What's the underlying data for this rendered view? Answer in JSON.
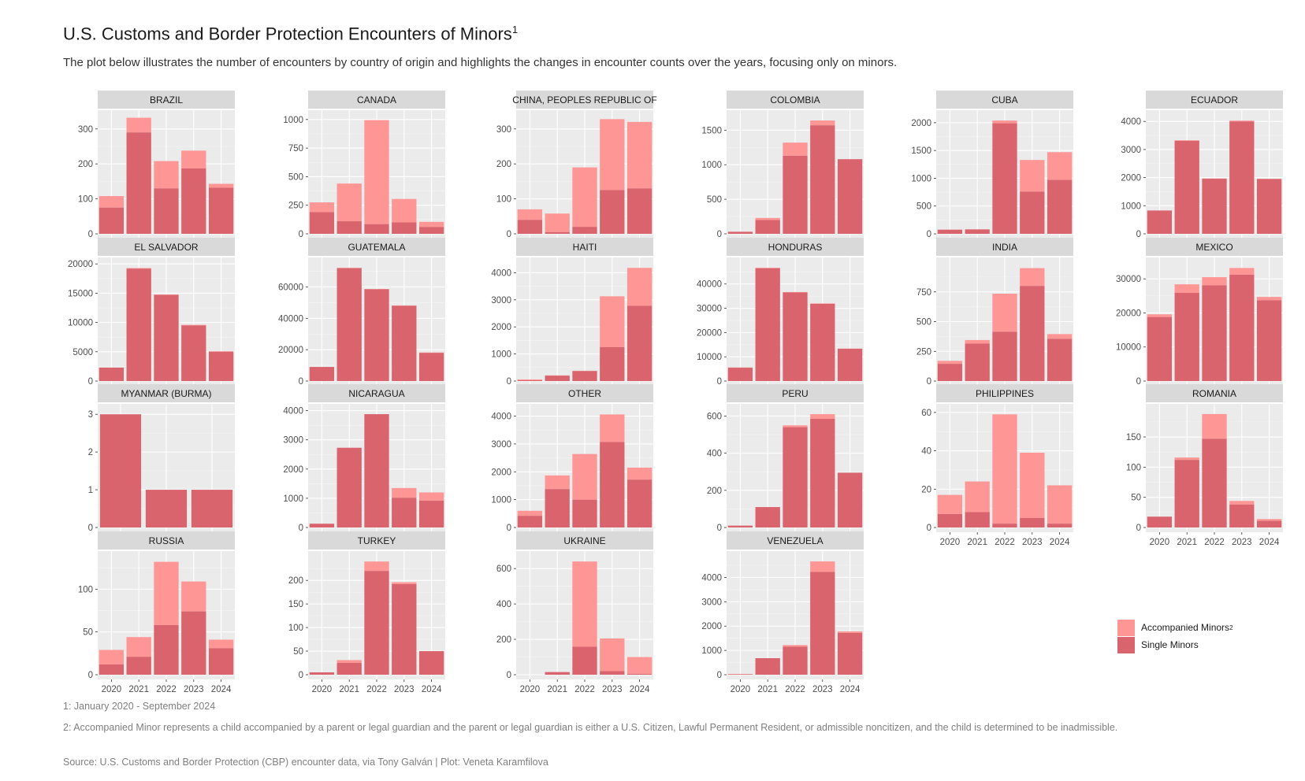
{
  "title": "U.S. Customs and Border Protection Encounters of Minors",
  "title_superscript": "1",
  "subtitle": "The plot below illustrates the number of encounters by country of origin and highlights the changes in encounter counts over the years, focusing only on minors.",
  "captions": {
    "note1": "1: January 2020 - September 2024",
    "note2": "2: Accompanied Minor represents a child accompanied by a parent or legal guardian and the parent or legal guardian is either a U.S. Citizen, Lawful Permanent Resident, or admissible noncitizen, and the child is determined to be inadmissible.",
    "source": "Source: U.S. Customs and Border Protection (CBP) encounter data, via Tony Galván | Plot: Veneta Karamfilova"
  },
  "legend": {
    "items": [
      {
        "label": "Accompanied Minors",
        "sup": "2",
        "color": "#ff9696"
      },
      {
        "label": "Single Minors",
        "sup": "",
        "color": "#d9646e"
      }
    ]
  },
  "colors": {
    "panel_bg": "#ebebeb",
    "strip_bg": "#d9d9d9",
    "grid_major": "#ffffff",
    "accompanied": "#ff9696",
    "single": "#d9646e",
    "axis_text": "#4d4d4d"
  },
  "chart_data": {
    "type": "bar",
    "stacked": true,
    "facet": "country",
    "series_names": [
      "Accompanied Minors",
      "Single Minors"
    ],
    "panels": [
      {
        "country": "BRAZIL",
        "years": [
          "2020",
          "2021",
          "2022",
          "2023",
          "2024"
        ],
        "single": [
          75,
          290,
          130,
          187,
          132
        ],
        "total": [
          108,
          332,
          208,
          238,
          143
        ],
        "ymax": 340,
        "ticks": [
          0,
          100,
          200,
          300
        ]
      },
      {
        "country": "CANADA",
        "years": [
          "2020",
          "2021",
          "2022",
          "2023",
          "2024"
        ],
        "single": [
          190,
          110,
          85,
          100,
          60
        ],
        "total": [
          275,
          440,
          995,
          305,
          105
        ],
        "ymax": 1040,
        "ticks": [
          0,
          250,
          500,
          750,
          1000
        ]
      },
      {
        "country": "CHINA, PEOPLES REPUBLIC OF",
        "years": [
          "2020",
          "2021",
          "2022",
          "2023",
          "2024"
        ],
        "single": [
          40,
          5,
          20,
          125,
          130
        ],
        "total": [
          70,
          58,
          190,
          328,
          320
        ],
        "ymax": 340,
        "ticks": [
          0,
          100,
          200,
          300
        ]
      },
      {
        "country": "COLOMBIA",
        "years": [
          "2020",
          "2021",
          "2022",
          "2023",
          "2024"
        ],
        "single": [
          30,
          200,
          1130,
          1570,
          1080
        ],
        "total": [
          30,
          230,
          1320,
          1640,
          1080
        ],
        "ymax": 1720,
        "ticks": [
          0,
          500,
          1000,
          1500
        ]
      },
      {
        "country": "CUBA",
        "years": [
          "2020",
          "2021",
          "2022",
          "2023",
          "2024"
        ],
        "single": [
          75,
          80,
          1990,
          760,
          970
        ],
        "total": [
          75,
          80,
          2040,
          1330,
          1470
        ],
        "ymax": 2140,
        "ticks": [
          0,
          500,
          1000,
          1500,
          2000
        ]
      },
      {
        "country": "ECUADOR",
        "years": [
          "2020",
          "2021",
          "2022",
          "2023",
          "2024"
        ],
        "single": [
          830,
          3310,
          1960,
          4000,
          1950
        ],
        "total": [
          830,
          3330,
          1970,
          4030,
          1960
        ],
        "ymax": 4230,
        "ticks": [
          0,
          1000,
          2000,
          3000,
          4000
        ]
      },
      {
        "country": "EL SALVADOR",
        "years": [
          "2020",
          "2021",
          "2022",
          "2023",
          "2024"
        ],
        "single": [
          2300,
          19200,
          14700,
          9500,
          5000
        ],
        "total": [
          2300,
          19300,
          14800,
          9600,
          5100
        ],
        "ymax": 20300,
        "ticks": [
          0,
          5000,
          10000,
          15000,
          20000
        ]
      },
      {
        "country": "GUATEMALA",
        "years": [
          "2020",
          "2021",
          "2022",
          "2023",
          "2024"
        ],
        "single": [
          9000,
          72000,
          58500,
          48000,
          18000
        ],
        "total": [
          9000,
          72200,
          58700,
          48200,
          18200
        ],
        "ymax": 75800,
        "ticks": [
          0,
          20000,
          40000,
          60000
        ]
      },
      {
        "country": "HAITI",
        "years": [
          "2020",
          "2021",
          "2022",
          "2023",
          "2024"
        ],
        "single": [
          30,
          200,
          370,
          1250,
          2780
        ],
        "total": [
          60,
          210,
          380,
          3130,
          4180
        ],
        "ymax": 4390,
        "ticks": [
          0,
          1000,
          2000,
          3000,
          4000
        ]
      },
      {
        "country": "HONDURAS",
        "years": [
          "2020",
          "2021",
          "2022",
          "2023",
          "2024"
        ],
        "single": [
          5500,
          46500,
          36500,
          31800,
          13300
        ],
        "total": [
          5600,
          46700,
          36700,
          32000,
          13400
        ],
        "ymax": 49000,
        "ticks": [
          0,
          10000,
          20000,
          30000,
          40000
        ]
      },
      {
        "country": "INDIA",
        "years": [
          "2020",
          "2021",
          "2022",
          "2023",
          "2024"
        ],
        "single": [
          145,
          315,
          415,
          800,
          355
        ],
        "total": [
          170,
          345,
          735,
          950,
          395
        ],
        "ymax": 1000,
        "ticks": [
          0,
          250,
          500,
          750
        ]
      },
      {
        "country": "MEXICO",
        "years": [
          "2020",
          "2021",
          "2022",
          "2023",
          "2024"
        ],
        "single": [
          18800,
          25900,
          28100,
          31200,
          23700
        ],
        "total": [
          19600,
          28400,
          30500,
          33200,
          24700
        ],
        "ymax": 34900,
        "ticks": [
          0,
          10000,
          20000,
          30000
        ]
      },
      {
        "country": "MYANMAR (BURMA)",
        "years": [
          "2021",
          "2022",
          "2023"
        ],
        "single": [
          3,
          1,
          1
        ],
        "total": [
          3,
          1,
          1
        ],
        "ymax": 3.15,
        "ticks": [
          0,
          1,
          2,
          3
        ]
      },
      {
        "country": "NICARAGUA",
        "years": [
          "2020",
          "2021",
          "2022",
          "2023",
          "2024"
        ],
        "single": [
          130,
          2730,
          3880,
          1020,
          920
        ],
        "total": [
          130,
          2730,
          3880,
          1350,
          1200
        ],
        "ymax": 4070,
        "ticks": [
          0,
          1000,
          2000,
          3000,
          4000
        ]
      },
      {
        "country": "OTHER",
        "years": [
          "2020",
          "2021",
          "2022",
          "2023",
          "2024"
        ],
        "single": [
          420,
          1380,
          1000,
          3070,
          1720
        ],
        "total": [
          600,
          1870,
          2640,
          4060,
          2150
        ],
        "ymax": 4270,
        "ticks": [
          0,
          1000,
          2000,
          3000,
          4000
        ]
      },
      {
        "country": "PERU",
        "years": [
          "2020",
          "2021",
          "2022",
          "2023",
          "2024"
        ],
        "single": [
          10,
          110,
          540,
          585,
          295
        ],
        "total": [
          10,
          110,
          550,
          610,
          295
        ],
        "ymax": 640,
        "ticks": [
          0,
          200,
          400,
          600
        ]
      },
      {
        "country": "PHILIPPINES",
        "years": [
          "2020",
          "2021",
          "2022",
          "2023",
          "2024"
        ],
        "single": [
          7,
          8,
          2,
          5,
          2
        ],
        "total": [
          17,
          24,
          59,
          39,
          22
        ],
        "ymax": 62,
        "ticks": [
          0,
          20,
          40,
          60
        ]
      },
      {
        "country": "ROMANIA",
        "years": [
          "2020",
          "2021",
          "2022",
          "2023",
          "2024"
        ],
        "single": [
          18,
          112,
          147,
          38,
          11
        ],
        "total": [
          18,
          116,
          188,
          44,
          14
        ],
        "ymax": 197,
        "ticks": [
          0,
          50,
          100,
          150
        ]
      },
      {
        "country": "RUSSIA",
        "years": [
          "2020",
          "2021",
          "2022",
          "2023",
          "2024"
        ],
        "single": [
          12,
          21,
          58,
          74,
          31
        ],
        "total": [
          29,
          44,
          132,
          109,
          41
        ],
        "ymax": 139,
        "ticks": [
          0,
          50,
          100
        ]
      },
      {
        "country": "TURKEY",
        "years": [
          "2020",
          "2021",
          "2022",
          "2023",
          "2024"
        ],
        "single": [
          5,
          25,
          220,
          192,
          50
        ],
        "total": [
          5,
          31,
          240,
          196,
          50
        ],
        "ymax": 252,
        "ticks": [
          0,
          50,
          100,
          150,
          200
        ]
      },
      {
        "country": "UKRAINE",
        "years": [
          "2020",
          "2021",
          "2022",
          "2023",
          "2024"
        ],
        "single": [
          0,
          15,
          158,
          20,
          5
        ],
        "total": [
          0,
          15,
          640,
          205,
          100
        ],
        "ymax": 672,
        "ticks": [
          0,
          200,
          400,
          600
        ]
      },
      {
        "country": "VENEZUELA",
        "years": [
          "2020",
          "2021",
          "2022",
          "2023",
          "2024"
        ],
        "single": [
          20,
          680,
          1150,
          4230,
          1720
        ],
        "total": [
          30,
          680,
          1220,
          4660,
          1780
        ],
        "ymax": 4890,
        "ticks": [
          0,
          1000,
          2000,
          3000,
          4000
        ]
      }
    ]
  }
}
